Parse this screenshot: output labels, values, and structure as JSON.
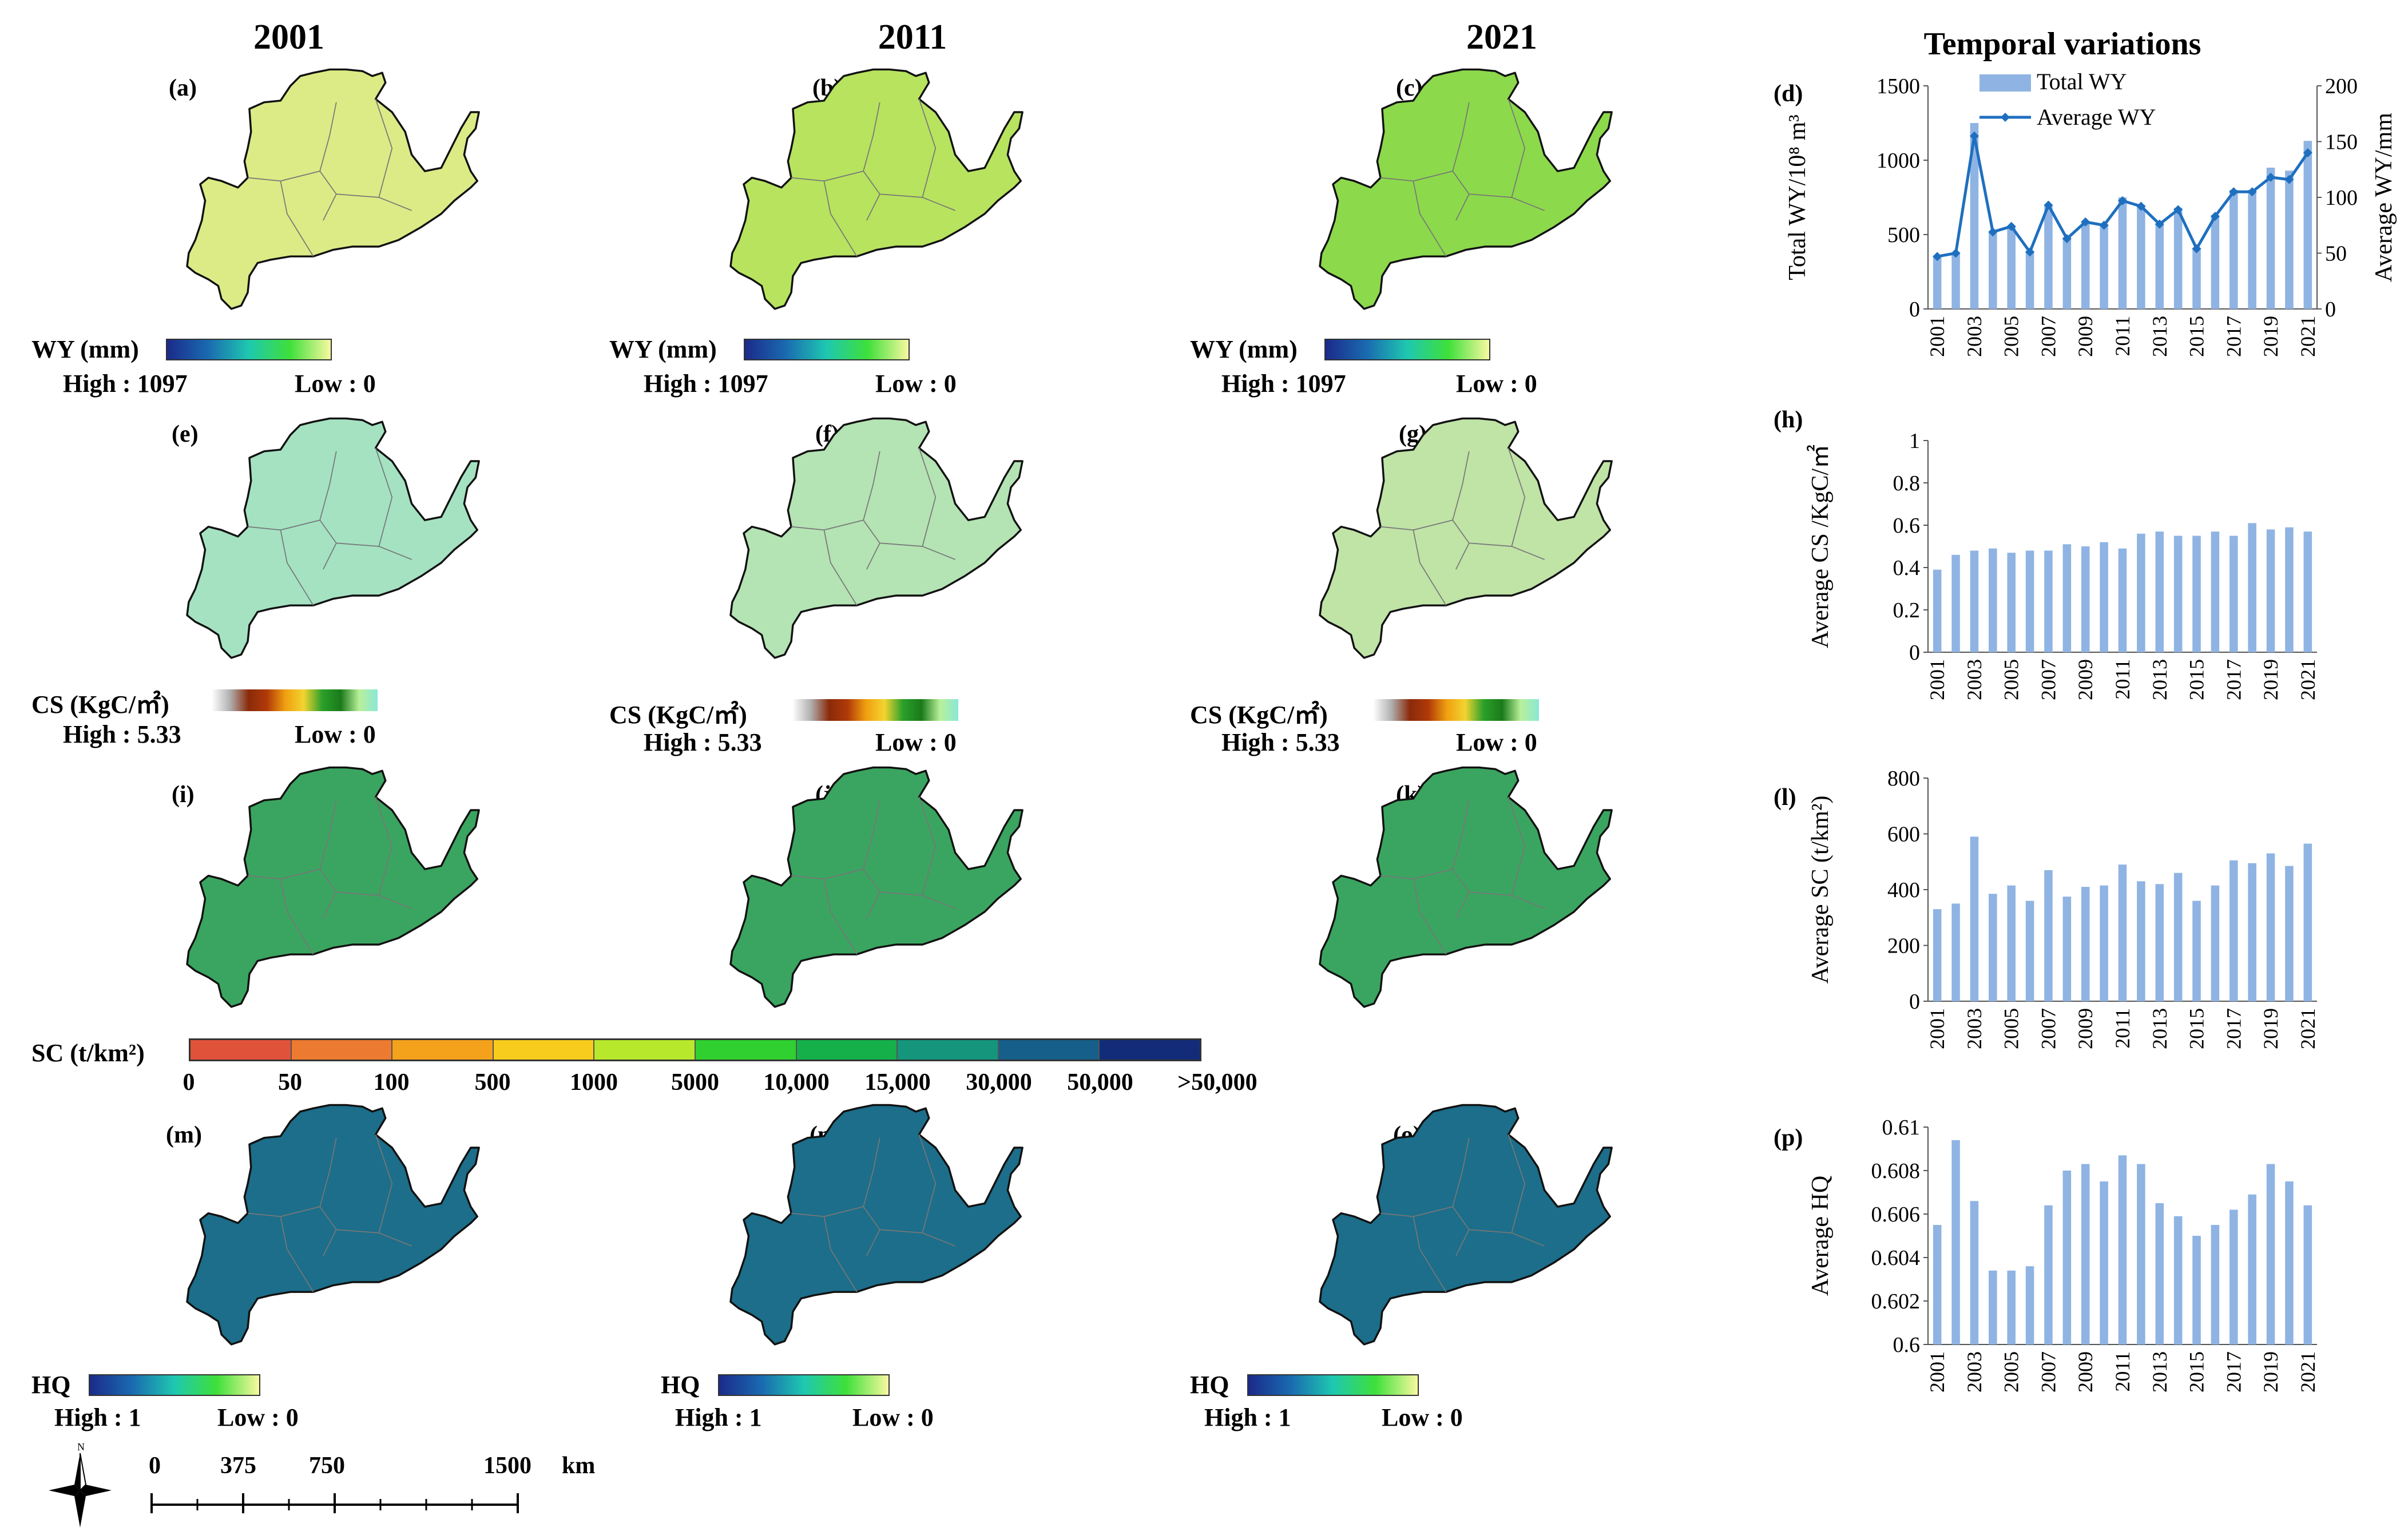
{
  "years": [
    "2001",
    "2011",
    "2021"
  ],
  "right_title": "Temporal variations",
  "panel_labels": [
    "(a)",
    "(b)",
    "(c)",
    "(d)",
    "(e)",
    "(f)",
    "(g)",
    "(h)",
    "(i)",
    "(j)",
    "(k)",
    "(l)",
    "(m)",
    "(n)",
    "(o)",
    "(p)"
  ],
  "wy_legend": {
    "title": "WY (mm)",
    "high": "High : 1097",
    "low": "Low : 0"
  },
  "cs_legend": {
    "title": "CS (KgC/㎡)",
    "high": "High : 5.33",
    "low": "Low : 0"
  },
  "hq_legend": {
    "title": "HQ",
    "high": "High : 1",
    "low": "Low : 0"
  },
  "sc_legend": {
    "title": "SC (t/km²)",
    "ticks": [
      "0",
      "50",
      "100",
      "500",
      "1000",
      "5000",
      "10,000",
      "15,000",
      "30,000",
      "50,000",
      ">50,000"
    ],
    "colors": [
      "#e0523a",
      "#ec7a30",
      "#f4a21c",
      "#f8cc1c",
      "#b8e82c",
      "#2fd02f",
      "#15b04a",
      "#14957c",
      "#155f8a",
      "#122c7a"
    ]
  },
  "scale_bar": {
    "ticks": [
      "0",
      "375",
      "750",
      "1500"
    ],
    "unit": "km",
    "north": "N"
  },
  "colors": {
    "bar": "#8fb4e3",
    "line": "#1f6fbf"
  },
  "chart_data": [
    {
      "type": "bar+line",
      "id": "d",
      "categories": [
        "2001",
        "2002",
        "2003",
        "2004",
        "2005",
        "2006",
        "2007",
        "2008",
        "2009",
        "2010",
        "2011",
        "2012",
        "2013",
        "2014",
        "2015",
        "2016",
        "2017",
        "2018",
        "2019",
        "2020",
        "2021"
      ],
      "xtick_labels": [
        "2001",
        "2003",
        "2005",
        "2007",
        "2009",
        "2011",
        "2013",
        "2015",
        "2017",
        "2019",
        "2021"
      ],
      "series": [
        {
          "name": "Total WY",
          "axis": "left",
          "kind": "bar",
          "values": [
            360,
            380,
            1250,
            520,
            560,
            390,
            700,
            480,
            590,
            570,
            750,
            700,
            570,
            680,
            410,
            630,
            800,
            800,
            950,
            930,
            1130
          ]
        },
        {
          "name": "Average WY",
          "axis": "right",
          "kind": "line",
          "values": [
            47,
            50,
            155,
            69,
            74,
            51,
            93,
            63,
            78,
            75,
            97,
            92,
            76,
            89,
            54,
            83,
            105,
            105,
            118,
            116,
            140
          ]
        }
      ],
      "ylabel_left": "Total WY/10⁸ m³",
      "ylabel_right": "Average WY/mm",
      "ylim_left": [
        0,
        1500
      ],
      "yticks_left": [
        "0",
        "500",
        "1000",
        "1500"
      ],
      "ylim_right": [
        0,
        200
      ],
      "yticks_right": [
        "0",
        "50",
        "100",
        "150",
        "200"
      ]
    },
    {
      "type": "bar",
      "id": "h",
      "categories": [
        "2001",
        "2002",
        "2003",
        "2004",
        "2005",
        "2006",
        "2007",
        "2008",
        "2009",
        "2010",
        "2011",
        "2012",
        "2013",
        "2014",
        "2015",
        "2016",
        "2017",
        "2018",
        "2019",
        "2020",
        "2021"
      ],
      "xtick_labels": [
        "2001",
        "2003",
        "2005",
        "2007",
        "2009",
        "2011",
        "2013",
        "2015",
        "2017",
        "2019",
        "2021"
      ],
      "values": [
        0.39,
        0.46,
        0.48,
        0.49,
        0.47,
        0.48,
        0.48,
        0.51,
        0.5,
        0.52,
        0.49,
        0.56,
        0.57,
        0.55,
        0.55,
        0.57,
        0.55,
        0.61,
        0.58,
        0.59,
        0.57
      ],
      "ylabel": "Average CS /KgC/㎡",
      "ylim": [
        0,
        1
      ],
      "yticks": [
        "0",
        "0.2",
        "0.4",
        "0.6",
        "0.8",
        "1"
      ]
    },
    {
      "type": "bar",
      "id": "l",
      "categories": [
        "2001",
        "2002",
        "2003",
        "2004",
        "2005",
        "2006",
        "2007",
        "2008",
        "2009",
        "2010",
        "2011",
        "2012",
        "2013",
        "2014",
        "2015",
        "2016",
        "2017",
        "2018",
        "2019",
        "2020",
        "2021"
      ],
      "xtick_labels": [
        "2001",
        "2003",
        "2005",
        "2007",
        "2009",
        "2011",
        "2013",
        "2015",
        "2017",
        "2019",
        "2021"
      ],
      "values": [
        330,
        350,
        590,
        385,
        415,
        360,
        470,
        375,
        410,
        415,
        490,
        430,
        420,
        460,
        360,
        415,
        505,
        495,
        530,
        485,
        565
      ],
      "ylabel": "Average SC (t/km²)",
      "ylim": [
        0,
        800
      ],
      "yticks": [
        "0",
        "200",
        "400",
        "600",
        "800"
      ]
    },
    {
      "type": "bar",
      "id": "p",
      "categories": [
        "2001",
        "2002",
        "2003",
        "2004",
        "2005",
        "2006",
        "2007",
        "2008",
        "2009",
        "2010",
        "2011",
        "2012",
        "2013",
        "2014",
        "2015",
        "2016",
        "2017",
        "2018",
        "2019",
        "2020",
        "2021"
      ],
      "xtick_labels": [
        "2001",
        "2003",
        "2005",
        "2007",
        "2009",
        "2011",
        "2013",
        "2015",
        "2017",
        "2019",
        "2021"
      ],
      "values": [
        0.6055,
        0.6094,
        0.6066,
        0.6034,
        0.6034,
        0.6036,
        0.6064,
        0.608,
        0.6083,
        0.6075,
        0.6087,
        0.6083,
        0.6065,
        0.6059,
        0.605,
        0.6055,
        0.6062,
        0.6069,
        0.6083,
        0.6075,
        0.6064
      ],
      "ylabel": "Average HQ",
      "ylim": [
        0.6,
        0.61
      ],
      "yticks": [
        "0.6",
        "0.602",
        "0.604",
        "0.606",
        "0.608",
        "0.61"
      ]
    }
  ]
}
